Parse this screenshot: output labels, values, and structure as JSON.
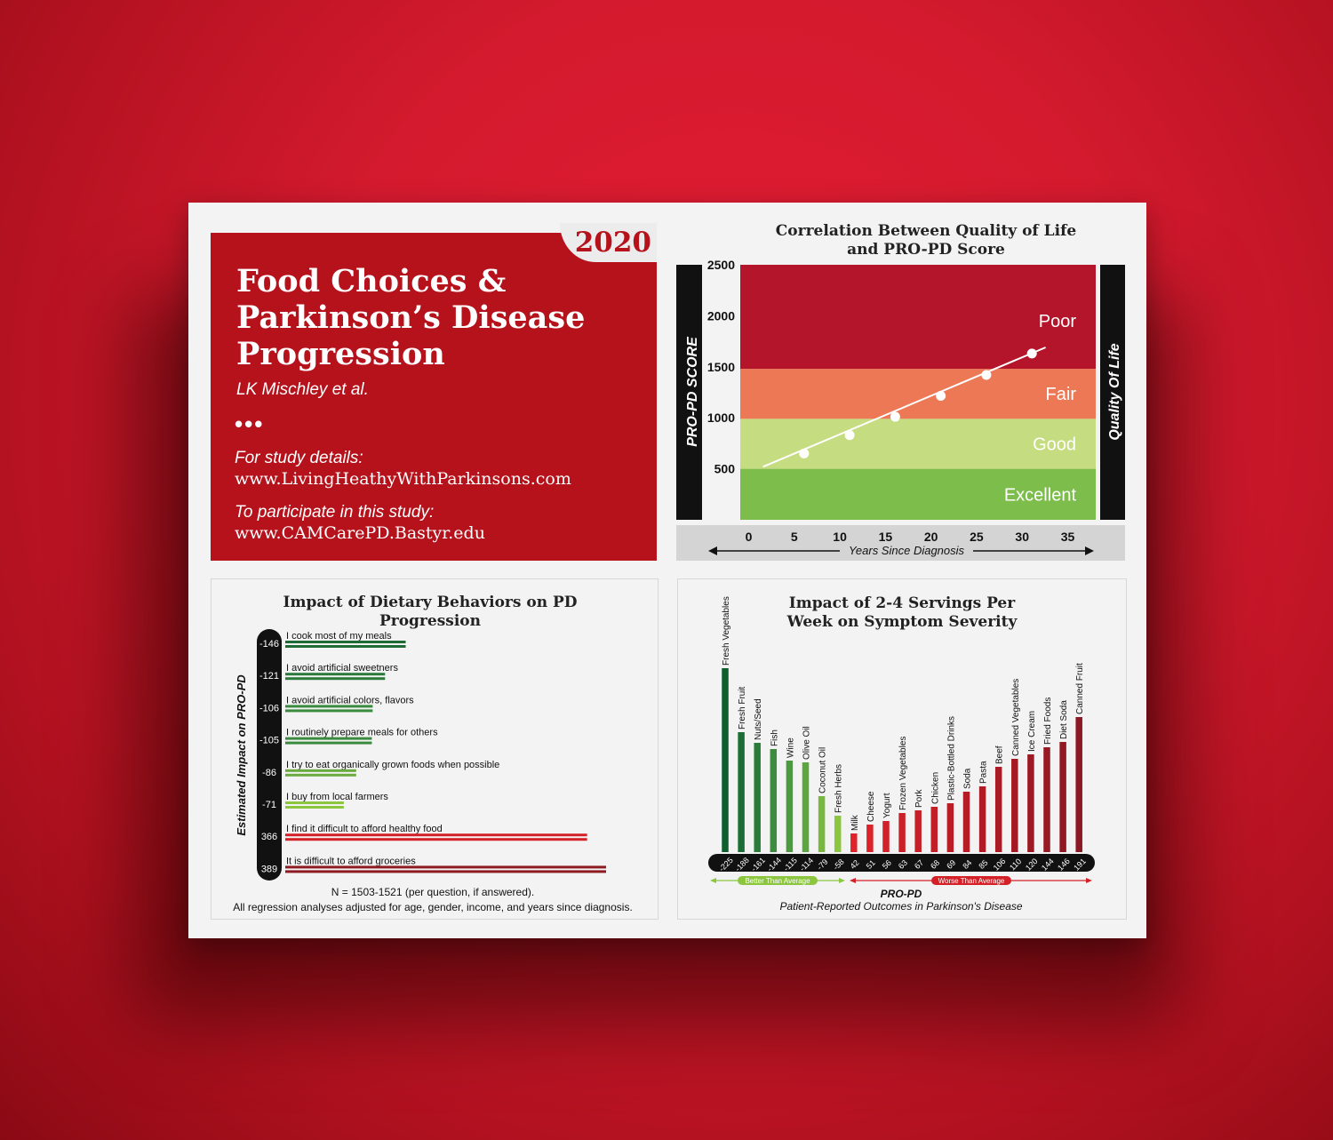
{
  "header": {
    "year": "2020",
    "title_lines": [
      "Food Choices &",
      "Parkinson’s Disease",
      "Progression"
    ],
    "authors": "LK Mischley et al.",
    "ellipsis": "•••",
    "details_label": "For study details:",
    "details_url": "www.LivingHeathyWithParkinsons.com",
    "participate_label": "To participate in this study:",
    "participate_url": "www.CAMCarePD.Bastyr.edu"
  },
  "colors": {
    "brand_red": "#b5121b",
    "poor": "#b5152a",
    "fair": "#ec7856",
    "good": "#c6dc80",
    "excellent": "#7dbd4c",
    "dark_green": "#1e6b35",
    "light_green": "#8cc63f",
    "red": "#d42027",
    "dark_red": "#8e1b22"
  },
  "chart_data": [
    {
      "type": "line",
      "title": "Correlation Between Quality of Life and PRO-PD Score",
      "xlabel": "Years Since Diagnosis",
      "ylabel": "PRO-PD SCORE",
      "right_label": "Quality Of Life",
      "xlim": [
        -2,
        37
      ],
      "ylim": [
        0,
        2500
      ],
      "x_ticks": [
        0,
        5,
        10,
        15,
        20,
        25,
        30,
        35
      ],
      "y_ticks": [
        500,
        1000,
        1500,
        2000,
        2500
      ],
      "bands": [
        {
          "label": "Excellent",
          "from": 0,
          "to": 500,
          "color": "#7dbd4c"
        },
        {
          "label": "Good",
          "from": 500,
          "to": 990,
          "color": "#c6dc80"
        },
        {
          "label": "Fair",
          "from": 990,
          "to": 1480,
          "color": "#ec7856"
        },
        {
          "label": "Poor",
          "from": 1480,
          "to": 2500,
          "color": "#b5152a"
        }
      ],
      "line": {
        "x": [
          0.5,
          31.5
        ],
        "y": [
          520,
          1690
        ]
      },
      "points": {
        "x": [
          5,
          10,
          15,
          20,
          25,
          30
        ],
        "y": [
          650,
          830,
          1010,
          1215,
          1420,
          1630
        ]
      }
    },
    {
      "type": "bar",
      "orientation": "horizontal",
      "title": "Impact of Dietary Behaviors on PD Progression",
      "ylabel": "Estimated Impact on PRO-PD",
      "categories": [
        "I cook most of my meals",
        "I avoid artificial sweetners",
        "I avoid artificial colors, flavors",
        "I routinely prepare meals for others",
        "I try to eat organically grown foods when possible",
        "I buy from local farmers",
        "I find it difficult to afford healthy food",
        "It is difficult to afford groceries"
      ],
      "values": [
        -146,
        -121,
        -106,
        -105,
        -86,
        -71,
        366,
        389
      ],
      "value_labels": [
        "-146",
        "-121",
        "-106",
        "-105",
        "-86",
        "-71",
        "366",
        "389"
      ],
      "colors": [
        "#1e6b35",
        "#2b7a3b",
        "#3a8a3f",
        "#3a8a3f",
        "#6aaa3e",
        "#8cc63f",
        "#d42027",
        "#8e1b22"
      ],
      "footnote_1": "N = 1503-1521 (per question, if answered).",
      "footnote_2": "All regression analyses adjusted for age, gender, income, and years since diagnosis."
    },
    {
      "type": "bar",
      "title": "Impact of 2-4 Servings Per Week on Symptom Severity",
      "xlabel": "PRO-PD",
      "xlabel_sub": "Patient-Reported Outcomes in Parkinson's Disease",
      "better_label": "Better Than Average",
      "worse_label": "Worse Than Average",
      "categories": [
        "Fresh Vegetables",
        "Fresh Fruit",
        "Nuts/Seed",
        "Fish",
        "Wine",
        "Olive Oil",
        "Coconut Oil",
        "Fresh Herbs",
        "Milk",
        "Cheese",
        "Yogurt",
        "Frozen Vegetables",
        "Pork",
        "Chicken",
        "Plastic-Bottled Drinks",
        "Soda",
        "Pasta",
        "Beef",
        "Canned Vegetables",
        "Ice Cream",
        "Fried Foods",
        "Diet Soda",
        "Canned Fruit"
      ],
      "values": [
        -225,
        -188,
        -161,
        -144,
        -115,
        -114,
        -79,
        -58,
        42,
        51,
        56,
        63,
        67,
        68,
        69,
        84,
        85,
        106,
        110,
        120,
        144,
        146,
        191
      ],
      "value_labels": [
        "-225",
        "-188",
        "-161",
        "-144",
        "-115",
        "-114",
        "-79",
        "-58",
        "42",
        "51",
        "56",
        "63",
        "67",
        "68",
        "69",
        "84",
        "85",
        "106",
        "110",
        "120",
        "144",
        "146",
        "191"
      ],
      "bar_heights": [
        207,
        135,
        123,
        116,
        103,
        101,
        63,
        41,
        21,
        31,
        35,
        44,
        47,
        51,
        55,
        68,
        74,
        96,
        105,
        110,
        118,
        124,
        152
      ],
      "colors": [
        "#0f5e2e",
        "#1c6e34",
        "#2a7d38",
        "#3b8c3c",
        "#4b9a3e",
        "#5ca63f",
        "#79b83f",
        "#8cc63f",
        "#e0232b",
        "#d9222a",
        "#d12129",
        "#cc2029",
        "#c61f28",
        "#c11e27",
        "#bb1d27",
        "#b51c26",
        "#af1c25",
        "#a91b25",
        "#a31a24",
        "#9d1a24",
        "#971923",
        "#911923",
        "#8b1822"
      ]
    }
  ]
}
